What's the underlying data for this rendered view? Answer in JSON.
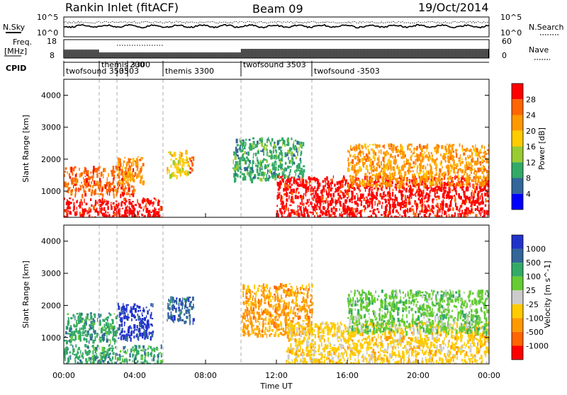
{
  "header": {
    "station": "Rankin Inlet (fitACF)",
    "beam": "Beam 09",
    "date": "19/Oct/2014"
  },
  "summary_panel": {
    "left_labels": {
      "nsky": "N.Sky",
      "freq_line1": "Freq.",
      "freq_line2": "[MHz]",
      "cpid": "CPID"
    },
    "right_labels": {
      "nsearch": "N.Search",
      "nave": "Nave"
    },
    "noise_ticks_left": [
      "10^5",
      "10^0"
    ],
    "noise_ticks_right": [
      "10^5",
      "10^0"
    ],
    "freq_ticks_left": [
      "18",
      "8"
    ],
    "nave_ticks_right": [
      "60",
      "0"
    ],
    "cpid_segments": [
      {
        "label": "twofsound 3503",
        "start_hour": 0.0
      },
      {
        "label": "themis 3300",
        "start_hour": 2.0
      },
      {
        "label": "3503",
        "start_hour": 3.0
      },
      {
        "label": "200",
        "start_hour": 3.6
      },
      {
        "label": "themis 3300",
        "start_hour": 5.6
      },
      {
        "label": "twofsound 3503",
        "start_hour": 10.0
      },
      {
        "label": "twofsound -3503",
        "start_hour": 14.0
      }
    ]
  },
  "chart_data": [
    {
      "type": "heatmap",
      "name": "power",
      "ylabel": "Slant Range [km]",
      "ylim": [
        180,
        4500
      ],
      "y_ticks": [
        1000,
        2000,
        3000,
        4000
      ],
      "colorbar": {
        "label": "Power [dB]",
        "tick_labels": [
          "28",
          "24",
          "20",
          "16",
          "12",
          "8",
          "4"
        ],
        "colors": [
          "#ff0000",
          "#ff6600",
          "#ff9900",
          "#ffcc00",
          "#99cc33",
          "#33aa66",
          "#336699",
          "#0000ff"
        ]
      },
      "regions": [
        {
          "t_start": 0.0,
          "t_end": 5.5,
          "r_min": 200,
          "r_max": 800,
          "level": 28
        },
        {
          "t_start": 0.0,
          "t_end": 4.0,
          "r_min": 900,
          "r_max": 1800,
          "level": 24
        },
        {
          "t_start": 3.0,
          "t_end": 4.5,
          "r_min": 1300,
          "r_max": 2100,
          "level": 20
        },
        {
          "t_start": 5.8,
          "t_end": 7.0,
          "r_min": 1500,
          "r_max": 2300,
          "level": 16
        },
        {
          "t_start": 7.0,
          "t_end": 7.3,
          "r_min": 1600,
          "r_max": 2100,
          "level": 24
        },
        {
          "t_start": 9.5,
          "t_end": 13.5,
          "r_min": 1400,
          "r_max": 2700,
          "level": 8
        },
        {
          "t_start": 12.0,
          "t_end": 24.0,
          "r_min": 200,
          "r_max": 1500,
          "level": 28
        },
        {
          "t_start": 16.0,
          "t_end": 24.0,
          "r_min": 1200,
          "r_max": 2500,
          "level": 20
        }
      ]
    },
    {
      "type": "heatmap",
      "name": "velocity",
      "ylabel": "Slant Range [km]",
      "ylim": [
        180,
        4500
      ],
      "y_ticks": [
        1000,
        2000,
        3000,
        4000
      ],
      "colorbar": {
        "label": "Velocity [m s^-1]",
        "tick_labels": [
          "1000",
          "500",
          "100",
          "25",
          "-25",
          "-100",
          "-500",
          "-1000"
        ],
        "colors": [
          "#2233cc",
          "#336699",
          "#33aa66",
          "#66cc33",
          "#cccccc",
          "#ffcc00",
          "#ff9900",
          "#ff6600",
          "#ff0000"
        ]
      },
      "regions": [
        {
          "t_start": 0.0,
          "t_end": 5.5,
          "r_min": 200,
          "r_max": 800,
          "level": 100
        },
        {
          "t_start": 0.0,
          "t_end": 3.0,
          "r_min": 900,
          "r_max": 1800,
          "level": 100
        },
        {
          "t_start": 3.0,
          "t_end": 5.0,
          "r_min": 1000,
          "r_max": 2100,
          "level": 1000
        },
        {
          "t_start": 5.8,
          "t_end": 7.3,
          "r_min": 1500,
          "r_max": 2300,
          "level": 500
        },
        {
          "t_start": 10.0,
          "t_end": 14.0,
          "r_min": 1100,
          "r_max": 2700,
          "level": -500
        },
        {
          "t_start": 12.5,
          "t_end": 24.0,
          "r_min": 200,
          "r_max": 1500,
          "level": -100
        },
        {
          "t_start": 16.0,
          "t_end": 24.0,
          "r_min": 1200,
          "r_max": 2500,
          "level": 25
        }
      ]
    }
  ],
  "x_axis": {
    "label": "Time UT",
    "xlim": [
      0,
      24
    ],
    "tick_labels": [
      "00:00",
      "04:00",
      "08:00",
      "12:00",
      "16:00",
      "20:00",
      "00:00"
    ],
    "ticks_hours": [
      0,
      4,
      8,
      12,
      16,
      20,
      24
    ]
  },
  "dashed_marker_hours": [
    2.0,
    3.0,
    5.6,
    10.0,
    14.0
  ]
}
